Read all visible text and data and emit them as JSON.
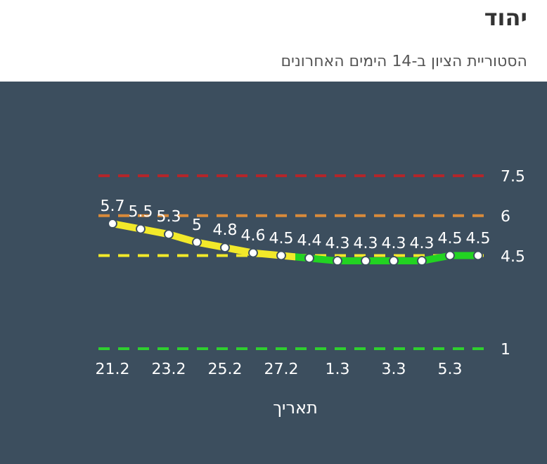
{
  "chart_data": {
    "type": "line",
    "title": "יהוד",
    "subtitle": "הסטוריית הציון ב-14 הימים האחרונים",
    "xlabel": "תאריך",
    "categories": [
      "21.2",
      null,
      "23.2",
      null,
      "25.2",
      null,
      "27.2",
      null,
      "1.3",
      null,
      "3.3",
      null,
      "5.3",
      null
    ],
    "series": [
      {
        "values": [
          5.7,
          5.5,
          5.3,
          5,
          4.8,
          4.6,
          4.5,
          4.4,
          4.3,
          4.3,
          4.3,
          4.3,
          4.5,
          4.5
        ],
        "colors": [
          "#f2e92a",
          "#f2e92a",
          "#f2e92a",
          "#f2e92a",
          "#f2e92a",
          "#f2e92a",
          "#f2e92a",
          "#22d322",
          "#22d322",
          "#22d322",
          "#22d322",
          "#22d322",
          "#22d322",
          "#22d322"
        ]
      }
    ],
    "data_labels": true,
    "marker": "circle",
    "tick_labels": "x",
    "ref_lines": [
      {
        "axis": "y",
        "value": 7.5,
        "label": "7.5",
        "color": "#b3262a",
        "line_style": "dashed"
      },
      {
        "axis": "y",
        "value": 6,
        "label": "6",
        "color": "#d98a3a",
        "line_style": "dashed"
      },
      {
        "axis": "y",
        "value": 4.5,
        "label": "4.5",
        "color": "#f2e92a",
        "line_style": "dashed"
      },
      {
        "axis": "y",
        "value": 1,
        "label": "1",
        "color": "#2fcf2f",
        "line_style": "dashed"
      }
    ]
  }
}
